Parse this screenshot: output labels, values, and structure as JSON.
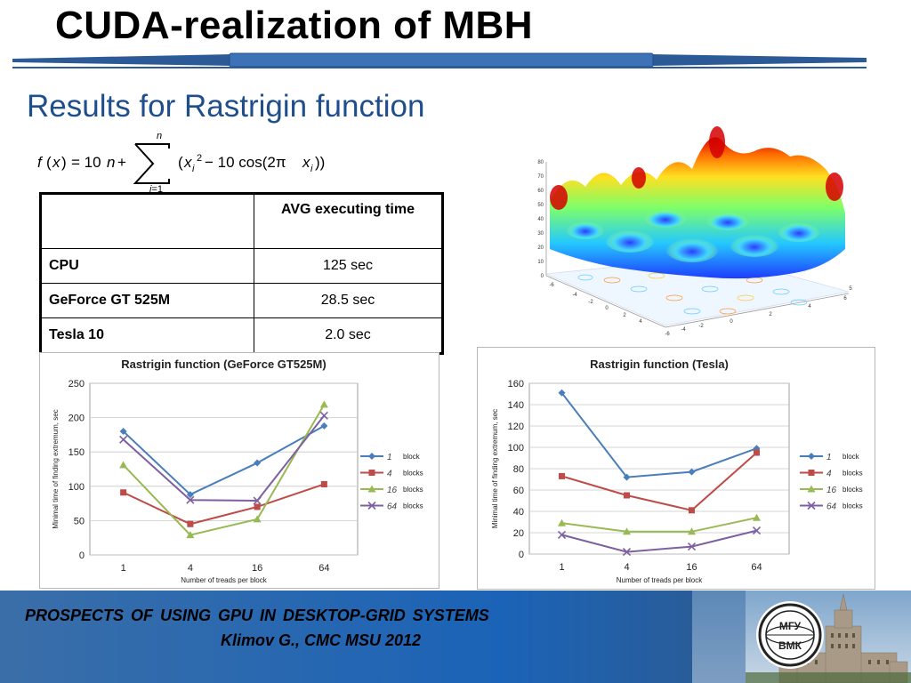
{
  "slide": {
    "title": "CUDA-realization of MBH",
    "subtitle": "Results for Rastrigin function",
    "formula_text": "f(x) = 10n + ∑ (xi² − 10 cos(2πxi))",
    "footer_line1": "PROSPECTS  OF  USING  GPU  IN  DESKTOP-GRID  SYSTEMS",
    "footer_line2": "Klimov G., CMC MSU 2012",
    "logo_text_top": "МГУ",
    "logo_text_bottom": "ВМК"
  },
  "table": {
    "header": [
      "",
      "AVG executing time"
    ],
    "rows": [
      {
        "label": "CPU",
        "value": "125 sec"
      },
      {
        "label": "GeForce GT 525M",
        "value": "28.5 sec"
      },
      {
        "label": "Tesla 10",
        "value": "2.0 sec"
      }
    ]
  },
  "surface": {
    "z_ticks": [
      "80",
      "70",
      "60",
      "50",
      "40",
      "30",
      "20",
      "10",
      "0"
    ],
    "x_ticks": [
      "-6",
      "-4",
      "-2",
      "0",
      "2",
      "4",
      "6"
    ],
    "y_ticks": [
      "-6",
      "-4",
      "-2",
      "0",
      "2",
      "4",
      "5"
    ]
  },
  "colors": {
    "title_blue": "#1f4e8c",
    "footer_blue": "#1b63b7",
    "series": [
      "#4a7ebb",
      "#be4b48",
      "#98b954",
      "#7d60a0"
    ]
  },
  "chart_data": [
    {
      "type": "line",
      "title": "Rastrigin function (GeForce GT525M)",
      "xlabel": "Number of treads per block",
      "ylabel": "Minimal time of finding extremum, sec",
      "categories": [
        "1",
        "4",
        "16",
        "64"
      ],
      "ylim": [
        0,
        250
      ],
      "yticks": [
        0,
        50,
        100,
        150,
        200,
        250
      ],
      "grid": true,
      "legend": "right",
      "series": [
        {
          "name": "1 block",
          "legend_num": "1",
          "legend_word": "block",
          "color": "#4a7ebb",
          "marker": "diamond",
          "values": [
            180,
            88,
            134,
            188
          ]
        },
        {
          "name": "4 blocks",
          "legend_num": "4",
          "legend_word": "blocks",
          "color": "#be4b48",
          "marker": "square",
          "values": [
            91,
            45,
            70,
            103
          ]
        },
        {
          "name": "16 blocks",
          "legend_num": "16",
          "legend_word": "blocks",
          "color": "#98b954",
          "marker": "triangle",
          "values": [
            131,
            29,
            52,
            219
          ]
        },
        {
          "name": "64 blocks",
          "legend_num": "64",
          "legend_word": "blocks",
          "color": "#7d60a0",
          "marker": "x",
          "values": [
            168,
            80,
            79,
            203
          ]
        }
      ]
    },
    {
      "type": "line",
      "title": "Rastrigin function (Tesla)",
      "xlabel": "Number of treads per block",
      "ylabel": "Minimal time of finding extremum, sec",
      "categories": [
        "1",
        "4",
        "16",
        "64"
      ],
      "ylim": [
        0,
        160
      ],
      "yticks": [
        0,
        20,
        40,
        60,
        80,
        100,
        120,
        140,
        160
      ],
      "grid": true,
      "legend": "right",
      "series": [
        {
          "name": "1 block",
          "legend_num": "1",
          "legend_word": "block",
          "color": "#4a7ebb",
          "marker": "diamond",
          "values": [
            151,
            72,
            77,
            99
          ]
        },
        {
          "name": "4 blocks",
          "legend_num": "4",
          "legend_word": "blocks",
          "color": "#be4b48",
          "marker": "square",
          "values": [
            73,
            55,
            41,
            95
          ]
        },
        {
          "name": "16 blocks",
          "legend_num": "16",
          "legend_word": "blocks",
          "color": "#98b954",
          "marker": "triangle",
          "values": [
            29,
            21,
            21,
            34
          ]
        },
        {
          "name": "64 blocks",
          "legend_num": "64",
          "legend_word": "blocks",
          "color": "#7d60a0",
          "marker": "x",
          "values": [
            18,
            2,
            7,
            22
          ]
        }
      ]
    }
  ]
}
